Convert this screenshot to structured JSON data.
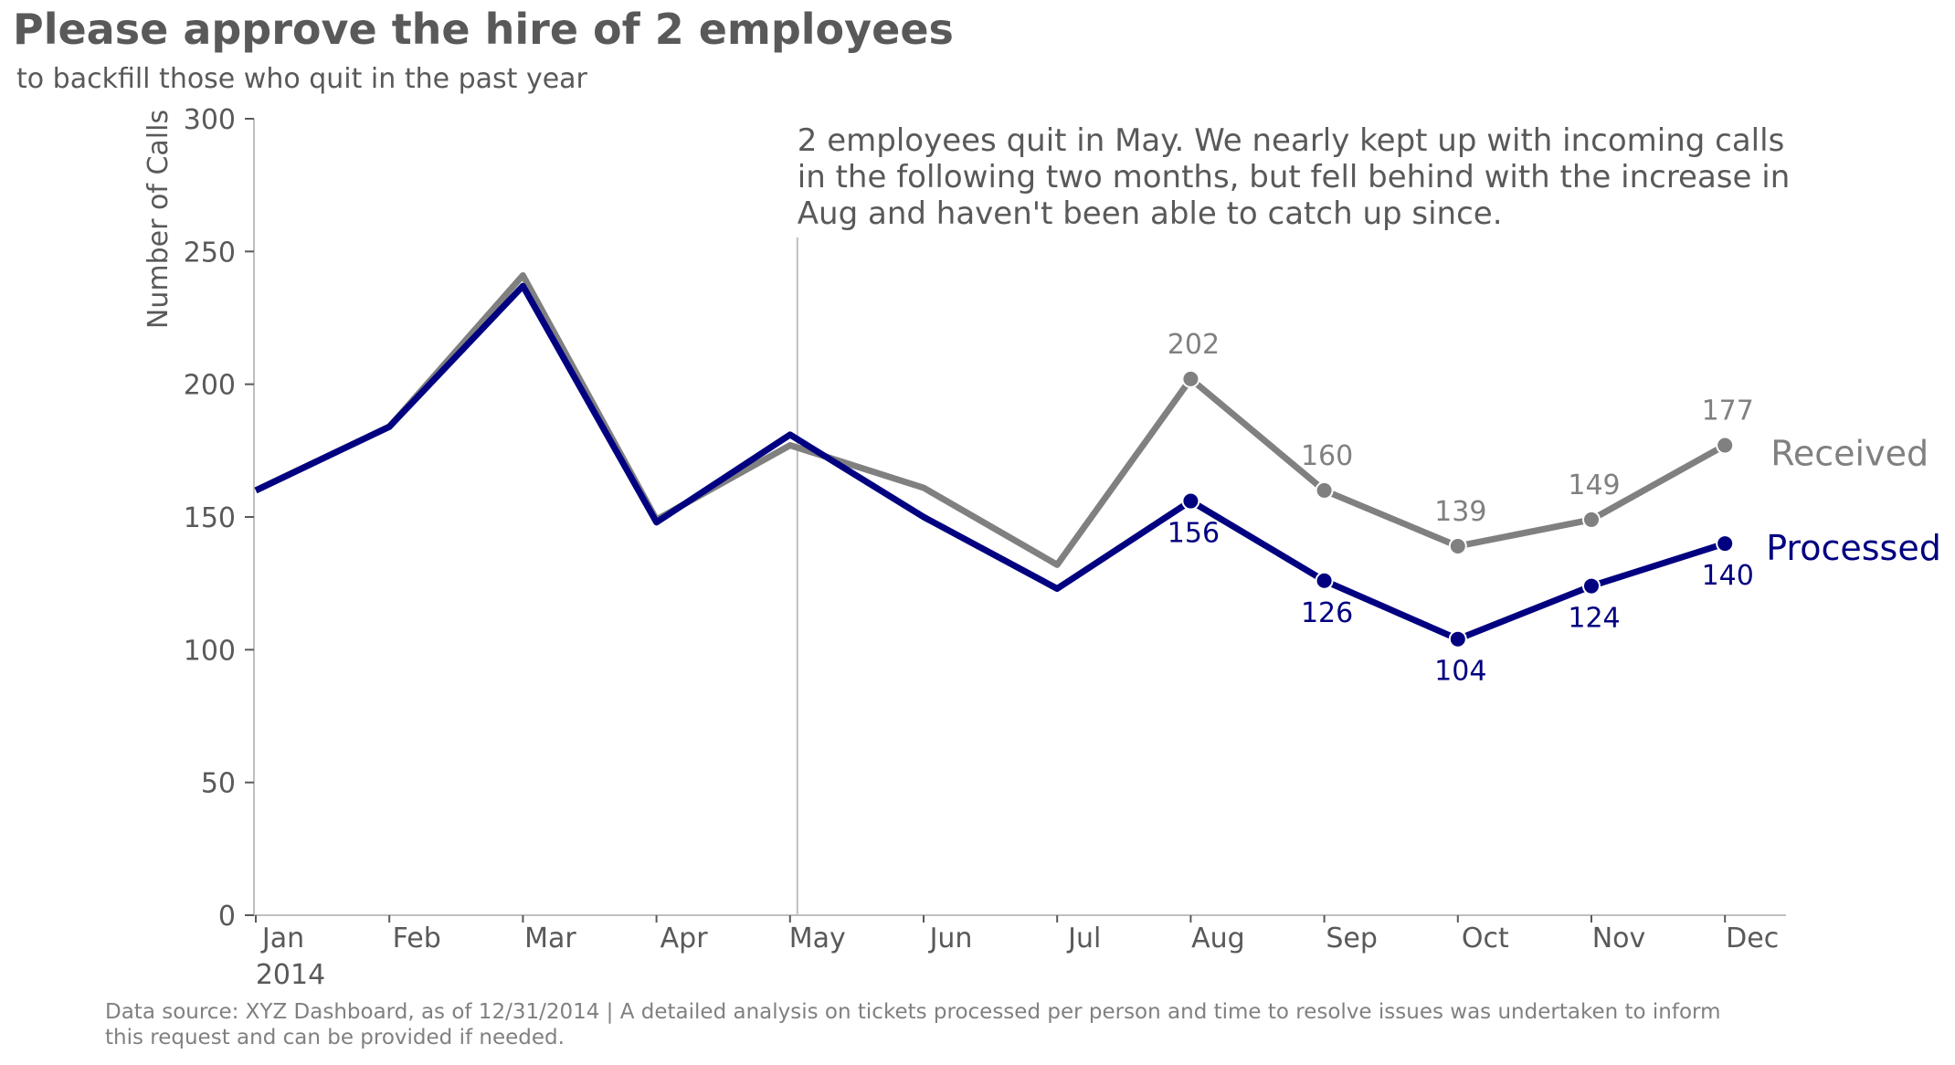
{
  "chart_data": {
    "type": "line",
    "title": "Please approve the hire of 2 employees",
    "subtitle": "to backfill those who quit in the past year",
    "ylabel": "Number of Calls",
    "xlabel": "",
    "categories": [
      "Jan",
      "Feb",
      "Mar",
      "Apr",
      "May",
      "Jun",
      "Jul",
      "Aug",
      "Sep",
      "Oct",
      "Nov",
      "Dec"
    ],
    "year_label": "2014",
    "ylim": [
      0,
      300
    ],
    "yticks": [
      0,
      50,
      100,
      150,
      200,
      250,
      300
    ],
    "grid": false,
    "series": [
      {
        "name": "Received",
        "color": "#808080",
        "values": [
          160,
          184,
          241,
          149,
          177,
          161,
          132,
          202,
          160,
          139,
          149,
          177
        ],
        "labeled_from": 7
      },
      {
        "name": "Processed",
        "color": "#000080",
        "values": [
          160,
          184,
          237,
          148,
          181,
          150,
          123,
          156,
          126,
          104,
          124,
          140
        ],
        "labeled_from": 7
      }
    ],
    "annotation": {
      "lines": [
        "2 employees quit in May. We nearly kept up with incoming calls",
        "in the following two months, but fell behind with the increase in",
        "Aug and haven't been able to catch up since."
      ],
      "marker_category": "May"
    },
    "footnote": [
      "Data source: XYZ Dashboard, as of 12/31/2014 | A detailed analysis on tickets processed per person and time to resolve issues was undertaken to inform",
      "this request and can be provided if needed."
    ],
    "colors": {
      "text": "#595959",
      "axis": "#bfbfbf",
      "footnote": "#808080"
    }
  }
}
